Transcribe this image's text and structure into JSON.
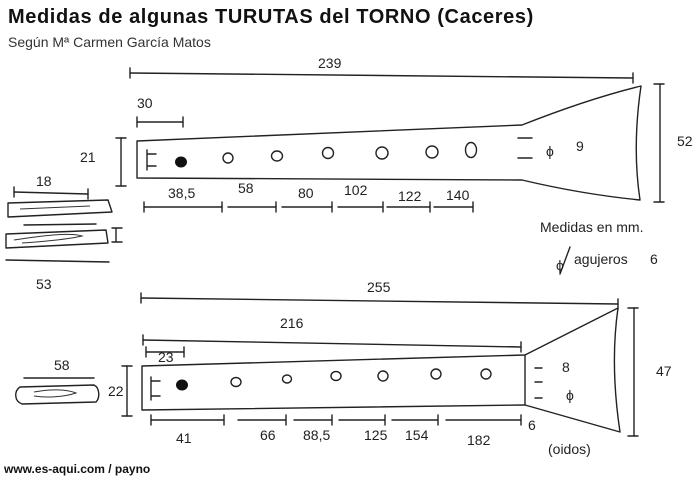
{
  "header": {
    "title": "Medidas  de  algunas  TURUTAS del TORNO  (Caceres)",
    "subtitle": "Según Mª Carmen García Matos"
  },
  "footer": {
    "credit": "www.es-aqui.com / payno"
  },
  "legend": {
    "units": "Medidas en mm.",
    "phi_symbol": "ϕ",
    "holes_label": "agujeros",
    "holes_value": "6"
  },
  "flute_top": {
    "total_length": "239",
    "mouth_length": "30",
    "body_height": "21",
    "bell_height": "52",
    "bell_hole_phi": "ϕ",
    "bell_hole_value": "9",
    "hole_distances": [
      "38,5",
      "58",
      "80",
      "102",
      "122",
      "140"
    ],
    "hole_count": 6
  },
  "mouthpiece_top": {
    "length_top": "18",
    "length_bottom": "53"
  },
  "flute_bottom": {
    "total_length": "255",
    "body_length": "216",
    "mouth_length": "23",
    "body_height": "22",
    "bell_height": "47",
    "bell_value": "8",
    "bell_phi": "ϕ",
    "bell_side_value": "6",
    "bell_side_label": "(oidos)",
    "hole_distances": [
      "41",
      "66",
      "88,5",
      "125",
      "154",
      "182"
    ],
    "hole_count": 6
  },
  "mouthpiece_bottom": {
    "length": "58"
  }
}
